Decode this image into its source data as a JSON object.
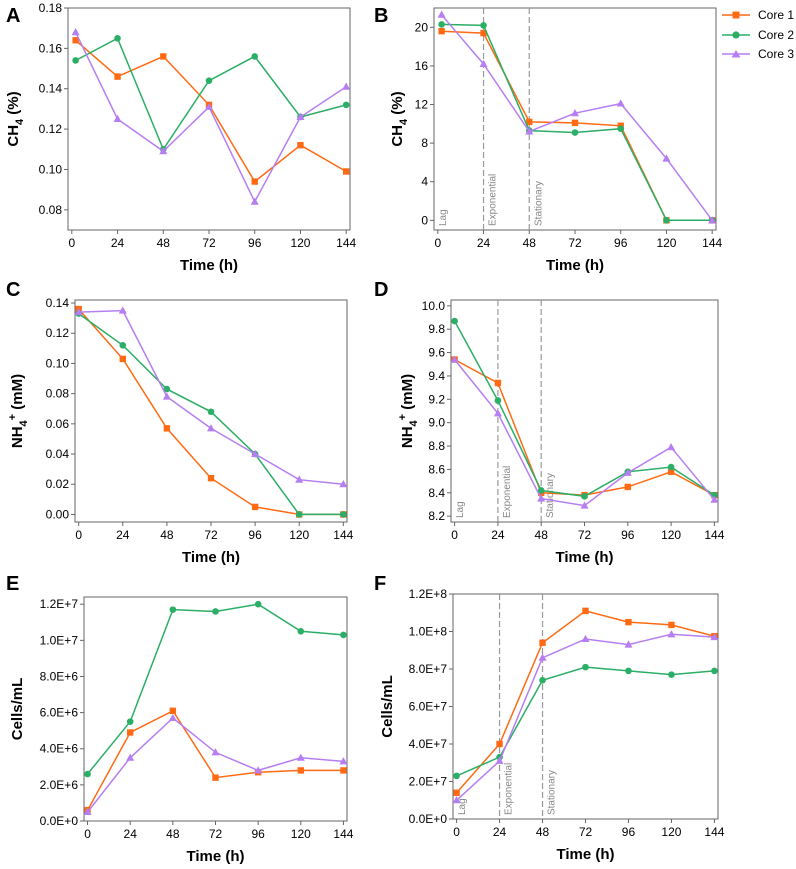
{
  "colors": {
    "core1": "#FF6A13",
    "core2": "#2BAE66",
    "core3": "#B57EF2",
    "phase_line": "#999999"
  },
  "legend": {
    "core1": "Core 1",
    "core2": "Core 2",
    "core3": "Core 3"
  },
  "chart_data": [
    {
      "id": "A",
      "type": "line",
      "x_ticks": [
        0,
        24,
        48,
        72,
        96,
        120,
        144
      ],
      "xlim": [
        -2,
        146
      ],
      "y_ticks": [
        0.08,
        0.1,
        0.12,
        0.14,
        0.16,
        0.18
      ],
      "y_tick_labels": [
        "0.08",
        "0.10",
        "0.12",
        "0.14",
        "0.16",
        "0.18"
      ],
      "ylim": [
        0.07,
        0.18
      ],
      "xlabel": "Time (h)",
      "ylabel": {
        "base": "CH",
        "sub": "4",
        "sup": "",
        "rest": " (%)"
      },
      "phases": [],
      "series": [
        {
          "name": "Core 1",
          "marker": "square",
          "x": [
            2,
            24,
            48,
            72,
            96,
            120,
            144
          ],
          "values": [
            0.164,
            0.146,
            0.156,
            0.132,
            0.094,
            0.112,
            0.099
          ]
        },
        {
          "name": "Core 2",
          "marker": "circle",
          "x": [
            2,
            24,
            48,
            72,
            96,
            120,
            144
          ],
          "values": [
            0.154,
            0.165,
            0.11,
            0.144,
            0.156,
            0.126,
            0.132
          ]
        },
        {
          "name": "Core 3",
          "marker": "triangle",
          "x": [
            2,
            24,
            48,
            72,
            96,
            120,
            144
          ],
          "values": [
            0.168,
            0.125,
            0.109,
            0.131,
            0.084,
            0.126,
            0.141
          ]
        }
      ]
    },
    {
      "id": "B",
      "type": "line",
      "x_ticks": [
        0,
        24,
        48,
        72,
        96,
        120,
        144
      ],
      "xlim": [
        -2,
        146
      ],
      "y_ticks": [
        0,
        4,
        8,
        12,
        16,
        20
      ],
      "y_tick_labels": [
        "0",
        "4",
        "8",
        "12",
        "16",
        "20"
      ],
      "ylim": [
        -1,
        22
      ],
      "xlabel": "Time (h)",
      "ylabel": {
        "base": "CH",
        "sub": "4",
        "sup": "",
        "rest": " (%)"
      },
      "phases": [
        {
          "label": "Lag",
          "x": 0
        },
        {
          "label": "Exponential",
          "x": 24
        },
        {
          "label": "Stationary",
          "x": 48
        }
      ],
      "series": [
        {
          "name": "Core 1",
          "marker": "square",
          "x": [
            2,
            24,
            48,
            72,
            96,
            120,
            144
          ],
          "values": [
            19.6,
            19.4,
            10.2,
            10.1,
            9.8,
            0,
            0
          ]
        },
        {
          "name": "Core 2",
          "marker": "circle",
          "x": [
            2,
            24,
            48,
            72,
            96,
            120,
            144
          ],
          "values": [
            20.3,
            20.2,
            9.3,
            9.1,
            9.5,
            0,
            0
          ]
        },
        {
          "name": "Core 3",
          "marker": "triangle",
          "x": [
            2,
            24,
            48,
            72,
            96,
            120,
            144
          ],
          "values": [
            21.3,
            16.2,
            9.2,
            11.1,
            12.1,
            6.4,
            0
          ]
        }
      ]
    },
    {
      "id": "C",
      "type": "line",
      "x_ticks": [
        0,
        24,
        48,
        72,
        96,
        120,
        144
      ],
      "xlim": [
        -2,
        146
      ],
      "y_ticks": [
        0.0,
        0.02,
        0.04,
        0.06,
        0.08,
        0.1,
        0.12,
        0.14
      ],
      "y_tick_labels": [
        "0.00",
        "0.02",
        "0.04",
        "0.06",
        "0.08",
        "0.10",
        "0.12",
        "0.14"
      ],
      "ylim": [
        -0.005,
        0.142
      ],
      "xlabel": "Time (h)",
      "ylabel": {
        "base": "NH",
        "sub": "4",
        "sup": "+",
        "rest": " (mM)"
      },
      "phases": [],
      "series": [
        {
          "name": "Core 1",
          "marker": "square",
          "x": [
            0,
            24,
            48,
            72,
            96,
            120,
            144
          ],
          "values": [
            0.136,
            0.103,
            0.057,
            0.024,
            0.005,
            0.0,
            0.0
          ]
        },
        {
          "name": "Core 2",
          "marker": "circle",
          "x": [
            0,
            24,
            48,
            72,
            96,
            120,
            144
          ],
          "values": [
            0.133,
            0.112,
            0.083,
            0.068,
            0.04,
            0.0,
            0.0
          ]
        },
        {
          "name": "Core 3",
          "marker": "triangle",
          "x": [
            0,
            24,
            48,
            72,
            96,
            120,
            144
          ],
          "values": [
            0.134,
            0.135,
            0.078,
            0.057,
            0.04,
            0.023,
            0.02
          ]
        }
      ]
    },
    {
      "id": "D",
      "type": "line",
      "x_ticks": [
        0,
        24,
        48,
        72,
        96,
        120,
        144
      ],
      "xlim": [
        -2,
        146
      ],
      "y_ticks": [
        8.2,
        8.4,
        8.6,
        8.8,
        9.0,
        9.2,
        9.4,
        9.6,
        9.8,
        10.0
      ],
      "y_tick_labels": [
        "8.2",
        "8.4",
        "8.6",
        "8.8",
        "9.0",
        "9.2",
        "9.4",
        "9.6",
        "9.8",
        "10.0"
      ],
      "ylim": [
        8.15,
        10.05
      ],
      "xlabel": "Time (h)",
      "ylabel": {
        "base": "NH",
        "sub": "4",
        "sup": "+",
        "rest": " (mM)"
      },
      "phases": [
        {
          "label": "Lag",
          "x": 0
        },
        {
          "label": "Exponential",
          "x": 24
        },
        {
          "label": "Stationary",
          "x": 48
        }
      ],
      "series": [
        {
          "name": "Core 1",
          "marker": "square",
          "x": [
            0,
            24,
            48,
            72,
            96,
            120,
            144
          ],
          "values": [
            9.54,
            9.34,
            8.4,
            8.38,
            8.45,
            8.58,
            8.38
          ]
        },
        {
          "name": "Core 2",
          "marker": "circle",
          "x": [
            0,
            24,
            48,
            72,
            96,
            120,
            144
          ],
          "values": [
            9.87,
            9.19,
            8.42,
            8.37,
            8.58,
            8.62,
            8.38
          ]
        },
        {
          "name": "Core 3",
          "marker": "triangle",
          "x": [
            0,
            24,
            48,
            72,
            96,
            120,
            144
          ],
          "values": [
            9.54,
            9.08,
            8.35,
            8.29,
            8.57,
            8.79,
            8.34
          ]
        }
      ]
    },
    {
      "id": "E",
      "type": "line",
      "x_ticks": [
        0,
        24,
        48,
        72,
        96,
        120,
        144
      ],
      "xlim": [
        -2,
        146
      ],
      "y_ticks": [
        0,
        2000000,
        4000000,
        6000000,
        8000000,
        10000000,
        12000000
      ],
      "y_tick_labels": [
        "0.0E+0",
        "2.0E+6",
        "4.0E+6",
        "6.0E+6",
        "8.0E+6",
        "1.0E+7",
        "1.2E+7"
      ],
      "ylim": [
        0,
        12400000
      ],
      "xlabel": "Time (h)",
      "ylabel": {
        "base": "Cells/mL",
        "sub": "",
        "sup": "",
        "rest": ""
      },
      "phases": [],
      "series": [
        {
          "name": "Core 1",
          "marker": "square",
          "x": [
            0,
            24,
            48,
            72,
            96,
            120,
            144
          ],
          "values": [
            600000,
            4900000,
            6100000,
            2400000,
            2700000,
            2800000,
            2800000
          ]
        },
        {
          "name": "Core 2",
          "marker": "circle",
          "x": [
            0,
            24,
            48,
            72,
            96,
            120,
            144
          ],
          "values": [
            2600000,
            5500000,
            11700000,
            11600000,
            12000000,
            10500000,
            10300000
          ]
        },
        {
          "name": "Core 3",
          "marker": "triangle",
          "x": [
            0,
            24,
            48,
            72,
            96,
            120,
            144
          ],
          "values": [
            500000,
            3500000,
            5700000,
            3800000,
            2800000,
            3500000,
            3300000
          ]
        }
      ]
    },
    {
      "id": "F",
      "type": "line",
      "x_ticks": [
        0,
        24,
        48,
        72,
        96,
        120,
        144
      ],
      "xlim": [
        -2,
        146
      ],
      "y_ticks": [
        0,
        20000000,
        40000000,
        60000000,
        80000000,
        100000000,
        120000000
      ],
      "y_tick_labels": [
        "0.0E+0",
        "2.0E+7",
        "4.0E+7",
        "6.0E+7",
        "8.0E+7",
        "1.0E+8",
        "1.2E+8"
      ],
      "ylim": [
        0,
        120000000
      ],
      "xlabel": "Time (h)",
      "ylabel": {
        "base": "Cells/mL",
        "sub": "",
        "sup": "",
        "rest": ""
      },
      "phases": [
        {
          "label": "Lag",
          "x": 0
        },
        {
          "label": "Exponential",
          "x": 24
        },
        {
          "label": "Stationary",
          "x": 48
        }
      ],
      "series": [
        {
          "name": "Core 1",
          "marker": "square",
          "x": [
            0,
            24,
            48,
            72,
            96,
            120,
            144
          ],
          "values": [
            14000000,
            40000000,
            94000000,
            111000000,
            105000000,
            103500000,
            97500000
          ]
        },
        {
          "name": "Core 2",
          "marker": "circle",
          "x": [
            0,
            24,
            48,
            72,
            96,
            120,
            144
          ],
          "values": [
            23000000,
            33000000,
            74000000,
            81000000,
            79000000,
            77000000,
            79000000
          ]
        },
        {
          "name": "Core 3",
          "marker": "triangle",
          "x": [
            0,
            24,
            48,
            72,
            96,
            120,
            144
          ],
          "values": [
            10000000,
            31000000,
            86000000,
            96000000,
            93000000,
            98500000,
            97000000
          ]
        }
      ]
    }
  ]
}
